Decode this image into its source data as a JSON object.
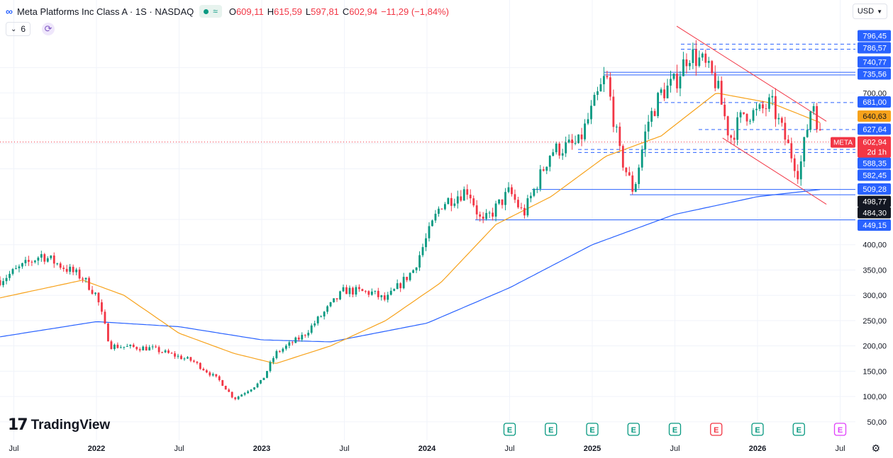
{
  "header": {
    "symbol_icon": "∞",
    "title": "Meta Platforms Inc Class A · 1S · NASDAQ",
    "market_status_icon": "≈",
    "ohlc": [
      {
        "k": "O",
        "v": "609,11"
      },
      {
        "k": "H",
        "v": "615,59"
      },
      {
        "k": "L",
        "v": "597,81"
      },
      {
        "k": "C",
        "v": "602,94"
      }
    ],
    "change": "−11,29 (−1,84%)",
    "indicators_count": "6",
    "currency": "USD"
  },
  "logo_text": "TradingView",
  "icons": [
    "meta-logo-icon",
    "chevron-down-icon",
    "refresh-icon",
    "earnings-icon",
    "settings-gear-icon"
  ],
  "colors": {
    "up": "#089981",
    "down": "#f23645",
    "ma_short": "#f7a21b",
    "ma_long": "#2962ff",
    "channel": "#f23645",
    "level": "#2962ff",
    "label_blue": "#2962ff",
    "label_orange": "#f7a21b",
    "label_red": "#f23645",
    "label_dark": "#131722"
  },
  "chart_data": {
    "type": "candlestick",
    "interval": "1 week",
    "x_ticks": [
      "Jul",
      "2022",
      "Jul",
      "2023",
      "Jul",
      "2024",
      "Jul",
      "2025",
      "Jul",
      "2026",
      "Jul"
    ],
    "x_tick_dates": [
      "2021-07",
      "2022-01",
      "2022-07",
      "2023-01",
      "2023-07",
      "2024-01",
      "2024-07",
      "2025-01",
      "2025-07",
      "2026-01",
      "2026-07"
    ],
    "y_ticks": [
      "700,00",
      "400,00",
      "350,00",
      "300,00",
      "250,00",
      "200,00",
      "150,00",
      "100,00",
      "50,00"
    ],
    "y_tick_values": [
      700,
      400,
      350,
      300,
      250,
      200,
      150,
      100,
      50
    ],
    "ylim": [
      40,
      820
    ],
    "grid": true,
    "price_keypoints": [
      [
        "2021-06",
        330
      ],
      [
        "2021-09",
        380
      ],
      [
        "2021-12",
        335
      ],
      [
        "2022-01",
        300
      ],
      [
        "2022-02",
        200
      ],
      [
        "2022-05",
        195
      ],
      [
        "2022-08",
        170
      ],
      [
        "2022-10",
        130
      ],
      [
        "2022-11",
        95
      ],
      [
        "2023-01",
        130
      ],
      [
        "2023-02",
        185
      ],
      [
        "2023-04",
        220
      ],
      [
        "2023-07",
        310
      ],
      [
        "2023-09",
        305
      ],
      [
        "2023-10",
        290
      ],
      [
        "2023-12",
        350
      ],
      [
        "2024-02",
        480
      ],
      [
        "2024-04",
        510
      ],
      [
        "2024-05",
        440
      ],
      [
        "2024-07",
        505
      ],
      [
        "2024-08",
        460
      ],
      [
        "2024-10",
        585
      ],
      [
        "2024-12",
        600
      ],
      [
        "2025-02",
        735
      ],
      [
        "2025-03",
        580
      ],
      [
        "2025-04",
        505
      ],
      [
        "2025-05",
        640
      ],
      [
        "2025-06",
        700
      ],
      [
        "2025-07",
        720
      ],
      [
        "2025-08",
        780
      ],
      [
        "2025-09",
        760
      ],
      [
        "2025-10",
        720
      ],
      [
        "2025-11",
        610
      ],
      [
        "2025-12",
        660
      ],
      [
        "2026-01",
        660
      ],
      [
        "2026-02",
        680
      ],
      [
        "2026-03",
        610
      ],
      [
        "2026-04",
        540
      ],
      [
        "2026-05",
        690
      ],
      [
        "2026-05-20",
        602.94
      ]
    ],
    "moving_average_short": [
      [
        "2021-06",
        295
      ],
      [
        "2021-12",
        330
      ],
      [
        "2022-03",
        300
      ],
      [
        "2022-07",
        225
      ],
      [
        "2022-11",
        185
      ],
      [
        "2023-02",
        165
      ],
      [
        "2023-06",
        200
      ],
      [
        "2023-10",
        250
      ],
      [
        "2024-02",
        325
      ],
      [
        "2024-06",
        440
      ],
      [
        "2024-10",
        495
      ],
      [
        "2025-02",
        575
      ],
      [
        "2025-06",
        615
      ],
      [
        "2025-10",
        700
      ],
      [
        "2026-02",
        680
      ],
      [
        "2026-05-20",
        640.63
      ]
    ],
    "moving_average_long": [
      [
        "2021-06",
        218
      ],
      [
        "2022-01",
        248
      ],
      [
        "2022-07",
        238
      ],
      [
        "2023-01",
        212
      ],
      [
        "2023-06",
        208
      ],
      [
        "2024-01",
        245
      ],
      [
        "2024-07",
        315
      ],
      [
        "2025-01",
        400
      ],
      [
        "2025-07",
        460
      ],
      [
        "2026-01",
        495
      ],
      [
        "2026-05-20",
        509.28
      ]
    ],
    "horizontal_levels": [
      {
        "value": 796.45,
        "style": "dashed"
      },
      {
        "value": 786.57,
        "style": "dashed"
      },
      {
        "value": 740.77,
        "style": "solid"
      },
      {
        "value": 735.56,
        "style": "solid"
      },
      {
        "value": 681.0,
        "style": "dashed"
      },
      {
        "value": 627.64,
        "style": "dashed"
      },
      {
        "value": 588.35,
        "style": "dashed"
      },
      {
        "value": 582.45,
        "style": "dashed"
      },
      {
        "value": 509.28,
        "style": "solid"
      },
      {
        "value": 498.77,
        "style": "solid"
      },
      {
        "value": 449.15,
        "style": "solid"
      }
    ],
    "price_labels": [
      {
        "text": "796,45",
        "value": 796.45,
        "color": "blue"
      },
      {
        "text": "786,57",
        "value": 786.57,
        "color": "blue"
      },
      {
        "text": "740,77",
        "value": 740.77,
        "color": "blue"
      },
      {
        "text": "735,56",
        "value": 735.56,
        "color": "blue"
      },
      {
        "text": "681,00",
        "value": 681.0,
        "color": "blue"
      },
      {
        "text": "640,63",
        "value": 640.63,
        "color": "orange"
      },
      {
        "text": "627,64",
        "value": 627.64,
        "color": "blue"
      },
      {
        "text": "588,35",
        "value": 588.35,
        "color": "blue"
      },
      {
        "text": "582,45",
        "value": 582.45,
        "color": "blue"
      },
      {
        "text": "509,28",
        "value": 509.28,
        "color": "blue"
      },
      {
        "text": "498,77",
        "value": 498.77,
        "color": "dark"
      },
      {
        "text": "484,30",
        "value": 484.3,
        "color": "dark"
      },
      {
        "text": "449,15",
        "value": 449.15,
        "color": "blue"
      }
    ],
    "current_price": {
      "value": 602.94,
      "text": "602,94",
      "countdown": "2d 1h",
      "symbol_tag": "META"
    },
    "channel_upper": [
      [
        "2025-07-05",
        832
      ],
      [
        "2026-06",
        644
      ]
    ],
    "channel_lower": [
      [
        "2025-10-15",
        611
      ],
      [
        "2026-06",
        480
      ]
    ],
    "events": [
      {
        "date": "2024-07",
        "label": "E",
        "kind": "up"
      },
      {
        "date": "2024-10",
        "label": "E",
        "kind": "up"
      },
      {
        "date": "2025-01",
        "label": "E",
        "kind": "up"
      },
      {
        "date": "2025-04",
        "label": "E",
        "kind": "up"
      },
      {
        "date": "2025-07",
        "label": "E",
        "kind": "up"
      },
      {
        "date": "2025-10",
        "label": "E",
        "kind": "down"
      },
      {
        "date": "2026-01",
        "label": "E",
        "kind": "up"
      },
      {
        "date": "2026-04",
        "label": "E",
        "kind": "up"
      },
      {
        "date": "2026-07",
        "label": "E",
        "kind": "upcoming"
      }
    ]
  }
}
